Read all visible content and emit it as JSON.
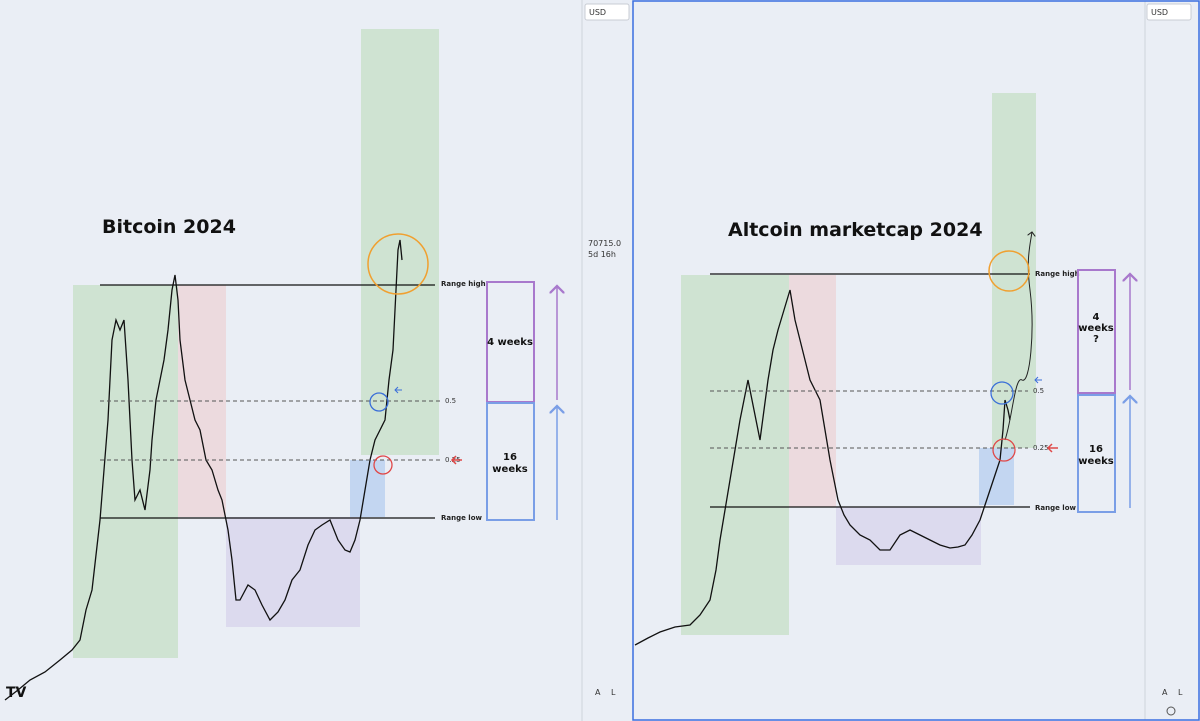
{
  "left_chart": {
    "title": "Bitcoin 2024",
    "currency": "USD",
    "price_label": "70715.0",
    "countdown": "5d 16h",
    "levels": {
      "range_high": "Range high",
      "fib_05": "0.5",
      "fib_025": "0.25",
      "range_low": "Range low"
    },
    "upper_box": [
      "4 weeks"
    ],
    "lower_box": [
      "16",
      "weeks"
    ],
    "scale_buttons": [
      "A",
      "L"
    ]
  },
  "right_chart": {
    "title": "Altcoin marketcap 2024",
    "currency": "USD",
    "levels": {
      "range_high": "Range high",
      "fib_05": "0.5",
      "fib_025": "0.25",
      "range_low": "Range low"
    },
    "upper_box": [
      "4",
      "weeks",
      "?"
    ],
    "lower_box": [
      "16",
      "weeks"
    ],
    "scale_buttons": [
      "A",
      "L"
    ]
  }
}
